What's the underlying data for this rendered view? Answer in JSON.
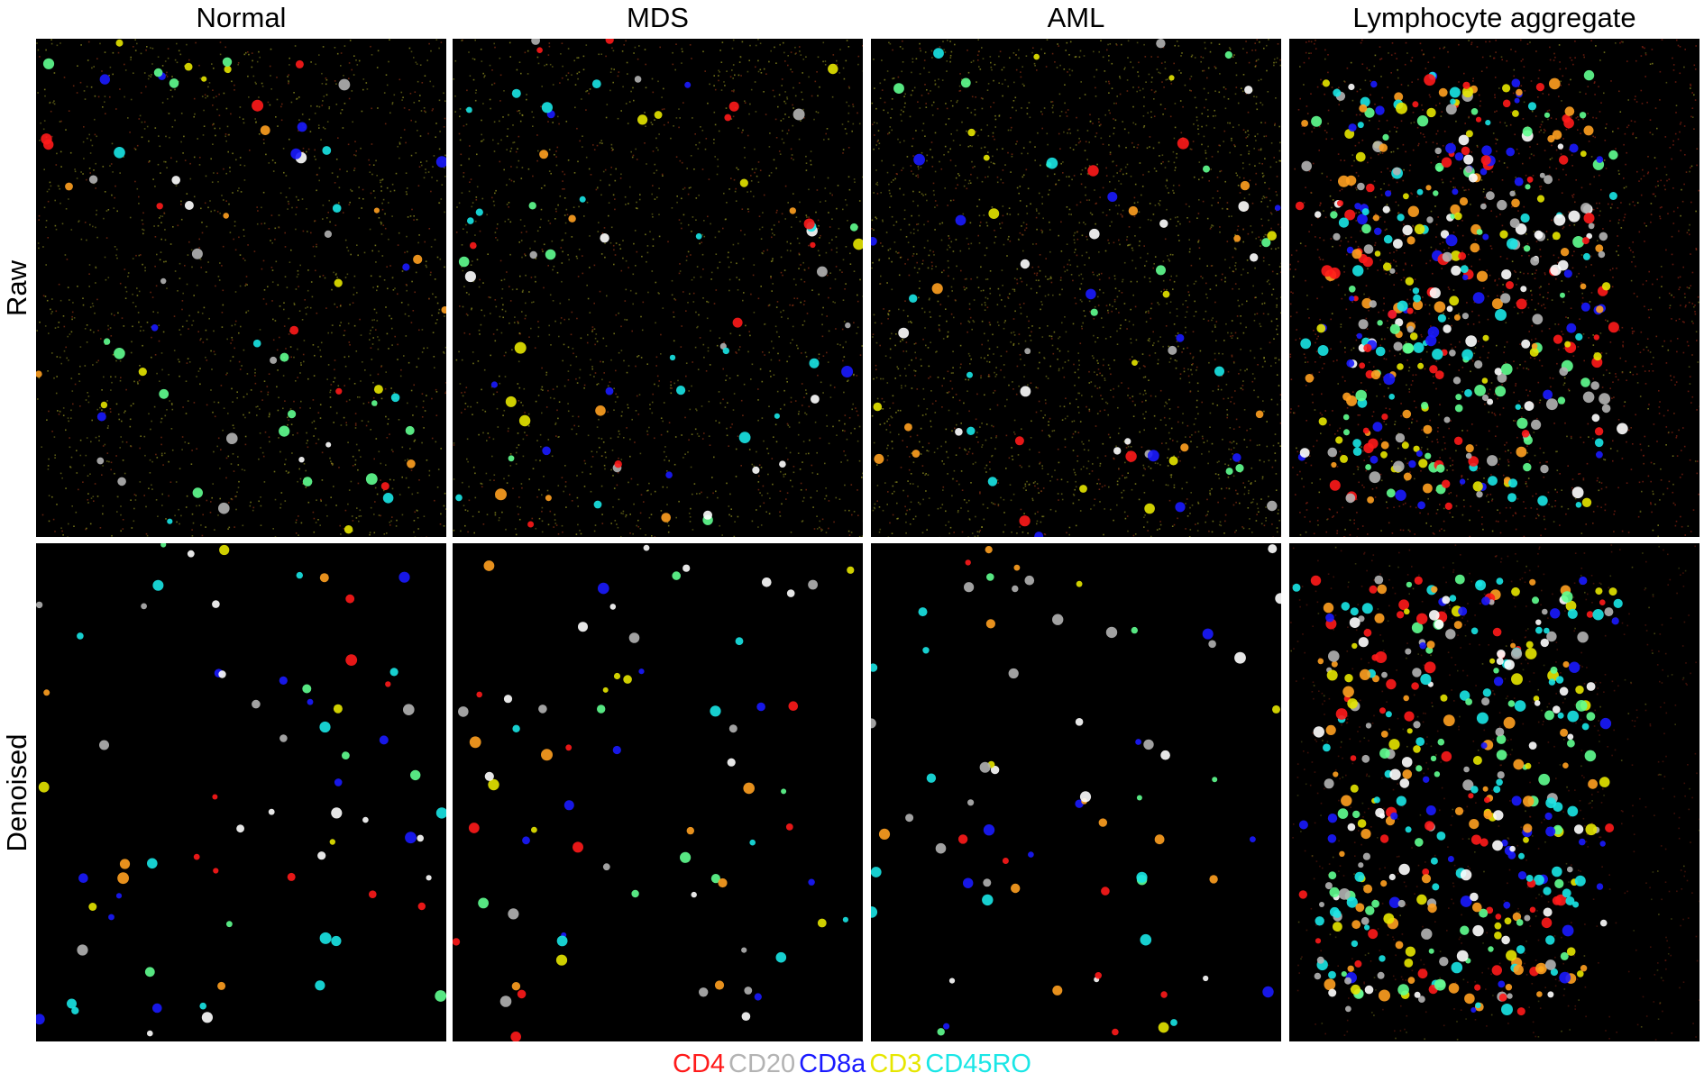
{
  "columns": [
    {
      "label": "Normal"
    },
    {
      "label": "MDS"
    },
    {
      "label": "AML"
    },
    {
      "label": "Lymphocyte aggregate"
    }
  ],
  "rows": [
    {
      "label": "Raw"
    },
    {
      "label": "Denoised"
    }
  ],
  "legend": [
    {
      "label": "CD4",
      "color": "#ff1a1a"
    },
    {
      "label": "CD20",
      "color": "#b3b3b3"
    },
    {
      "label": "CD8a",
      "color": "#1a1aff"
    },
    {
      "label": "CD3",
      "color": "#e6e600"
    },
    {
      "label": "CD45RO",
      "color": "#1ae6e6"
    }
  ],
  "panel_style": {
    "background": "#000000",
    "noise_color": "#8a8a1e",
    "aggregate_noise_color": "#7a1e10"
  }
}
